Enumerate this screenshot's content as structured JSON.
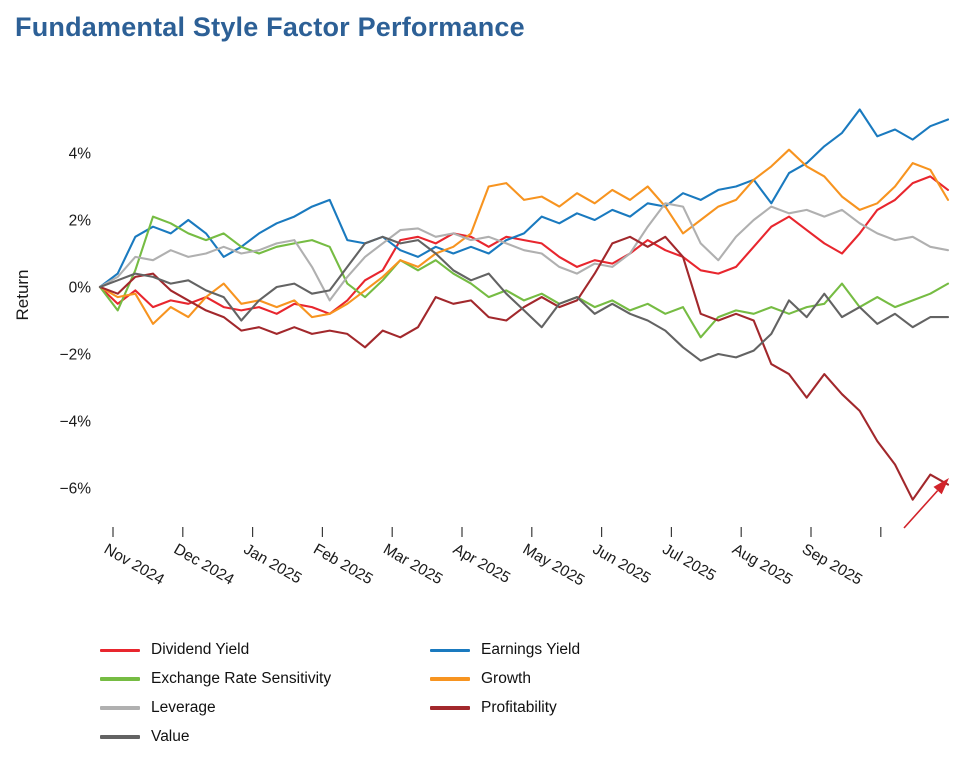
{
  "title": "Fundamental Style Factor Performance",
  "chart_data": {
    "type": "line",
    "title": "Fundamental Style Factor Performance",
    "xlabel": "",
    "ylabel": "Return",
    "x_unit": "weekly points, late Oct 2024 through late Sep 2025",
    "x_tick_labels": [
      "Nov 2024",
      "Dec 2024",
      "Jan 2025",
      "Feb 2025",
      "Mar 2025",
      "Apr 2025",
      "May 2025",
      "Jun 2025",
      "Jul 2025",
      "Aug 2025",
      "Sep 2025"
    ],
    "extra_unlabeled_ticks": 1,
    "y_ticks": [
      {
        "v": 4,
        "label": "4%"
      },
      {
        "v": 2,
        "label": "2%"
      },
      {
        "v": 0,
        "label": "0%"
      },
      {
        "v": -2,
        "label": "−2%"
      },
      {
        "v": -4,
        "label": "−4%"
      },
      {
        "v": -6,
        "label": "−6%"
      }
    ],
    "ylim": [
      -6.9,
      5.7
    ],
    "grid": false,
    "legend_position": "bottom",
    "series": [
      {
        "name": "Dividend Yield",
        "color": "#E8262E",
        "values": [
          0,
          -0.5,
          -0.1,
          -0.6,
          -0.4,
          -0.5,
          -0.3,
          -0.6,
          -0.7,
          -0.6,
          -0.8,
          -0.5,
          -0.6,
          -0.8,
          -0.4,
          0.2,
          0.5,
          1.4,
          1.5,
          1.3,
          1.6,
          1.5,
          1.2,
          1.5,
          1.4,
          1.3,
          0.9,
          0.6,
          0.8,
          0.7,
          1.0,
          1.4,
          1.1,
          0.9,
          0.5,
          0.4,
          0.6,
          1.2,
          1.8,
          2.1,
          1.7,
          1.3,
          1.0,
          1.6,
          2.3,
          2.6,
          3.1,
          3.3,
          2.9
        ]
      },
      {
        "name": "Earnings Yield",
        "color": "#1A7ABF",
        "values": [
          0,
          0.4,
          1.5,
          1.8,
          1.6,
          2.0,
          1.6,
          0.9,
          1.2,
          1.6,
          1.9,
          2.1,
          2.4,
          2.6,
          1.4,
          1.3,
          1.5,
          1.1,
          0.9,
          1.2,
          1.0,
          1.2,
          1.0,
          1.4,
          1.6,
          2.1,
          1.9,
          2.2,
          2.0,
          2.3,
          2.1,
          2.5,
          2.4,
          2.8,
          2.6,
          2.9,
          3.0,
          3.2,
          2.5,
          3.4,
          3.7,
          4.2,
          4.6,
          5.3,
          4.5,
          4.7,
          4.4,
          4.8,
          5.0
        ]
      },
      {
        "name": "Exchange Rate Sensitivity",
        "color": "#76BC43",
        "values": [
          0,
          -0.7,
          0.5,
          2.1,
          1.9,
          1.6,
          1.4,
          1.6,
          1.2,
          1.0,
          1.2,
          1.3,
          1.4,
          1.2,
          0.1,
          -0.3,
          0.2,
          0.8,
          0.5,
          0.8,
          0.4,
          0.1,
          -0.3,
          -0.1,
          -0.4,
          -0.2,
          -0.5,
          -0.3,
          -0.6,
          -0.4,
          -0.7,
          -0.5,
          -0.8,
          -0.6,
          -1.5,
          -0.9,
          -0.7,
          -0.8,
          -0.6,
          -0.8,
          -0.6,
          -0.5,
          0.1,
          -0.6,
          -0.3,
          -0.6,
          -0.4,
          -0.2,
          0.1
        ]
      },
      {
        "name": "Growth",
        "color": "#F79420",
        "values": [
          0,
          -0.3,
          -0.2,
          -1.1,
          -0.6,
          -0.9,
          -0.3,
          0.1,
          -0.5,
          -0.4,
          -0.6,
          -0.4,
          -0.9,
          -0.8,
          -0.5,
          -0.1,
          0.3,
          0.8,
          0.6,
          1.0,
          1.2,
          1.6,
          3.0,
          3.1,
          2.6,
          2.7,
          2.4,
          2.8,
          2.5,
          2.9,
          2.6,
          3.0,
          2.4,
          1.6,
          2.0,
          2.4,
          2.6,
          3.2,
          3.6,
          4.1,
          3.6,
          3.3,
          2.7,
          2.3,
          2.5,
          3.0,
          3.7,
          3.5,
          2.6
        ]
      },
      {
        "name": "Leverage",
        "color": "#B0B0B0",
        "values": [
          0,
          0.3,
          0.9,
          0.8,
          1.1,
          0.9,
          1.0,
          1.2,
          1.0,
          1.1,
          1.3,
          1.4,
          0.6,
          -0.4,
          0.3,
          0.9,
          1.3,
          1.7,
          1.75,
          1.5,
          1.6,
          1.4,
          1.5,
          1.3,
          1.1,
          1.0,
          0.6,
          0.4,
          0.7,
          0.6,
          1.0,
          1.8,
          2.5,
          2.4,
          1.3,
          0.8,
          1.5,
          2.0,
          2.4,
          2.2,
          2.3,
          2.1,
          2.3,
          1.9,
          1.6,
          1.4,
          1.5,
          1.2,
          1.1
        ]
      },
      {
        "name": "Profitability",
        "color": "#A2282C",
        "values": [
          0,
          -0.2,
          0.3,
          0.4,
          -0.1,
          -0.4,
          -0.7,
          -0.9,
          -1.3,
          -1.2,
          -1.4,
          -1.2,
          -1.4,
          -1.3,
          -1.4,
          -1.8,
          -1.3,
          -1.5,
          -1.2,
          -0.3,
          -0.5,
          -0.4,
          -0.9,
          -1.0,
          -0.6,
          -0.3,
          -0.6,
          -0.4,
          0.4,
          1.3,
          1.5,
          1.2,
          1.5,
          0.9,
          -0.8,
          -1.0,
          -0.8,
          -1.0,
          -2.3,
          -2.6,
          -3.3,
          -2.6,
          -3.2,
          -3.7,
          -4.6,
          -5.3,
          -6.35,
          -5.6,
          -5.9
        ]
      },
      {
        "name": "Value",
        "color": "#636363",
        "values": [
          0,
          0.2,
          0.4,
          0.3,
          0.1,
          0.2,
          -0.1,
          -0.3,
          -1.0,
          -0.4,
          0.0,
          0.1,
          -0.2,
          -0.1,
          0.6,
          1.3,
          1.5,
          1.3,
          1.4,
          1.0,
          0.5,
          0.2,
          0.4,
          -0.2,
          -0.7,
          -1.2,
          -0.5,
          -0.3,
          -0.8,
          -0.5,
          -0.8,
          -1.0,
          -1.3,
          -1.8,
          -2.2,
          -2.0,
          -2.1,
          -1.9,
          -1.4,
          -0.4,
          -0.9,
          -0.2,
          -0.9,
          -0.6,
          -1.1,
          -0.8,
          -1.2,
          -0.9,
          -0.9
        ]
      }
    ],
    "annotation": {
      "type": "arrow",
      "color": "#D2232A",
      "target_series": "Profitability",
      "direction": "up-right"
    }
  },
  "legend": {
    "order": [
      "Dividend Yield",
      "Earnings Yield",
      "Exchange Rate Sensitivity",
      "Growth",
      "Leverage",
      "Profitability",
      "Value"
    ]
  }
}
